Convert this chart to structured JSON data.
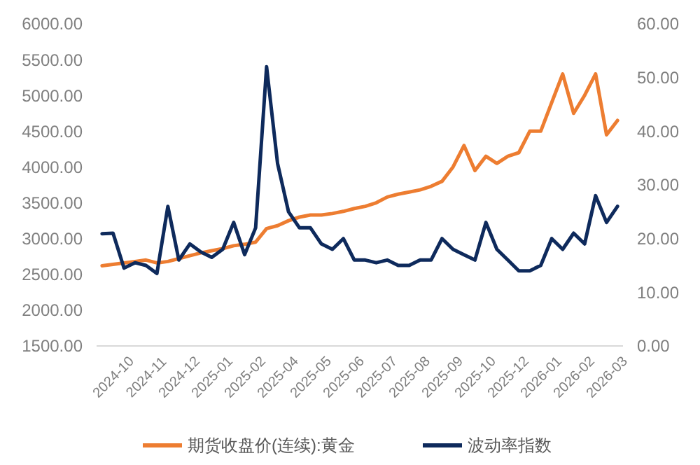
{
  "chart_data": {
    "type": "line",
    "categories": [
      null,
      "2024-10",
      null,
      null,
      "2024-11",
      null,
      null,
      "2024-12",
      null,
      null,
      "2025-01",
      null,
      null,
      "2025-02",
      null,
      null,
      "2025-04",
      null,
      null,
      "2025-05",
      null,
      null,
      "2025-06",
      null,
      null,
      "2025-07",
      null,
      null,
      "2025-08",
      null,
      null,
      "2025-09",
      null,
      null,
      "2025-10",
      null,
      null,
      "2025-12",
      null,
      null,
      "2026-01",
      null,
      null,
      "2026-02",
      null,
      null,
      "2026-03",
      null
    ],
    "series": [
      {
        "name": "期货收盘价(连续):黄金",
        "color": "#ed7d31",
        "values": [
          2620,
          2640,
          2660,
          2680,
          2700,
          2660,
          2680,
          2720,
          2760,
          2800,
          2830,
          2860,
          2900,
          2920,
          2950,
          3140,
          3180,
          3250,
          3300,
          3330,
          3330,
          3350,
          3380,
          3420,
          3450,
          3500,
          3580,
          3620,
          3650,
          3680,
          3730,
          3800,
          4000,
          4300,
          3950,
          4150,
          4050,
          4150,
          4200,
          4500,
          4500,
          4900,
          5300,
          4750,
          5000,
          5300,
          4450,
          4650
        ]
      },
      {
        "name": "波动率指数",
        "color": "#0e2a5c",
        "axis": "y2",
        "values": [
          20.9,
          21,
          14.5,
          15.5,
          15,
          13.5,
          26,
          16,
          19,
          17.5,
          16.5,
          18,
          23,
          17,
          22,
          52,
          34,
          25,
          22,
          22,
          19,
          18,
          20,
          16,
          16,
          15.5,
          16,
          15,
          15,
          16,
          16,
          20,
          18,
          17,
          16,
          23,
          18,
          16,
          14,
          14,
          15,
          20,
          18,
          21,
          19,
          28,
          23,
          26
        ]
      }
    ],
    "ylim": [
      1500,
      6000
    ],
    "yticks": [
      {
        "value": 1500,
        "label": "1500.00"
      },
      {
        "value": 2000,
        "label": "2000.00"
      },
      {
        "value": 2500,
        "label": "2500.00"
      },
      {
        "value": 3000,
        "label": "3000.00"
      },
      {
        "value": 3500,
        "label": "3500.00"
      },
      {
        "value": 4000,
        "label": "4000.00"
      },
      {
        "value": 4500,
        "label": "4500.00"
      },
      {
        "value": 5000,
        "label": "5000.00"
      },
      {
        "value": 5500,
        "label": "5500.00"
      },
      {
        "value": 6000,
        "label": "6000.00"
      }
    ],
    "y2lim": [
      0,
      60
    ],
    "y2ticks": [
      {
        "value": 0,
        "label": "0.00"
      },
      {
        "value": 10,
        "label": "10.00"
      },
      {
        "value": 20,
        "label": "20.00"
      },
      {
        "value": 30,
        "label": "30.00"
      },
      {
        "value": 40,
        "label": "40.00"
      },
      {
        "value": 50,
        "label": "50.00"
      },
      {
        "value": 60,
        "label": "60.00"
      }
    ],
    "legend": "bottom",
    "line_style": "solid"
  }
}
